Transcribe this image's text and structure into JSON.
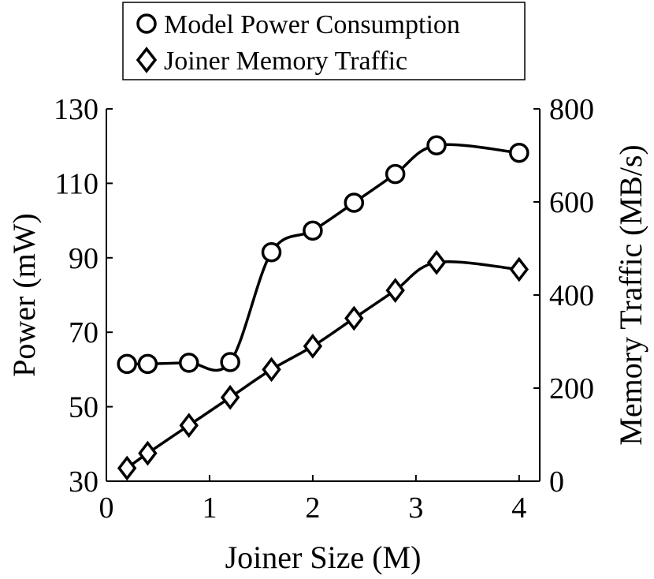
{
  "chart_data": {
    "type": "line",
    "title": "",
    "xlabel": "Joiner Size (M)",
    "ylabel": "Power (mW)",
    "y2label": "Memory Traffic (MB/s)",
    "xlim": [
      0,
      4.2
    ],
    "ylim": [
      30,
      130
    ],
    "y2lim": [
      0,
      800
    ],
    "xticks": [
      "0",
      "1",
      "2",
      "3",
      "4"
    ],
    "yticks": [
      "30",
      "50",
      "70",
      "90",
      "110",
      "130"
    ],
    "y2ticks": [
      "0",
      "200",
      "400",
      "600",
      "800"
    ],
    "legend_position": "top-center",
    "series": [
      {
        "name": "Model Power Consumption",
        "axis": "left",
        "marker": "circle",
        "x": [
          0.2,
          0.4,
          0.8,
          1.2,
          1.6,
          2.0,
          2.4,
          2.8,
          3.2,
          4.0
        ],
        "y": [
          61.5,
          61.5,
          61.8,
          62.0,
          91.5,
          97.3,
          104.8,
          112.5,
          120.2,
          118.2
        ]
      },
      {
        "name": "Joiner Memory Traffic",
        "axis": "right",
        "marker": "diamond",
        "x": [
          0.2,
          0.4,
          0.8,
          1.2,
          1.6,
          2.0,
          2.4,
          2.8,
          3.2,
          4.0
        ],
        "y": [
          28,
          60,
          120,
          180,
          240,
          290,
          350,
          410,
          470,
          455
        ]
      }
    ]
  }
}
